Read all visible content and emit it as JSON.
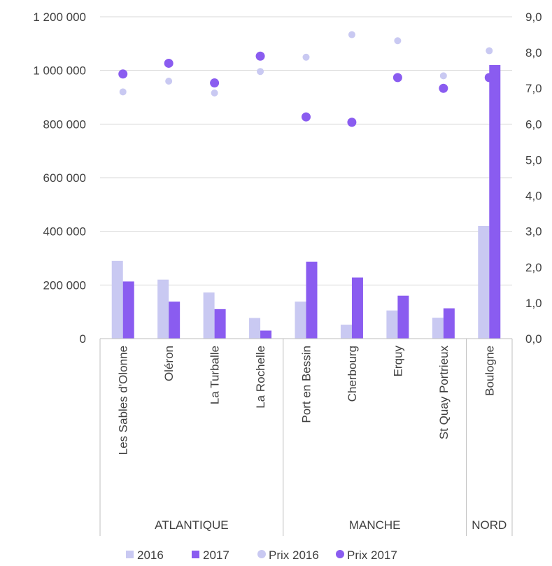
{
  "chart_data": {
    "type": "bar",
    "categories": [
      "Les Sables d'Olonne",
      "Oléron",
      "La Turballe",
      "La Rochelle",
      "Port en Bessin",
      "Cherbourg",
      "Erquy",
      "St Quay Portrieux",
      "Boulogne"
    ],
    "groups": [
      {
        "label": "ATLANTIQUE",
        "count": 4
      },
      {
        "label": "MANCHE",
        "count": 4
      },
      {
        "label": "NORD",
        "count": 1
      }
    ],
    "series": [
      {
        "name": "2016",
        "kind": "bar",
        "axis": "left",
        "color": "#c9c9f2",
        "values": [
          290000,
          220000,
          172000,
          77000,
          138000,
          52000,
          105000,
          78000,
          420000
        ]
      },
      {
        "name": "2017",
        "kind": "bar",
        "axis": "left",
        "color": "#8a5cf0",
        "values": [
          213000,
          138000,
          110000,
          30000,
          287000,
          228000,
          160000,
          113000,
          1020000
        ]
      },
      {
        "name": "Prix 2016",
        "kind": "scatter",
        "axis": "right",
        "color": "#c9c9f2",
        "values": [
          6.9,
          7.2,
          6.87,
          7.47,
          7.87,
          8.5,
          8.33,
          7.35,
          8.05
        ]
      },
      {
        "name": "Prix 2017",
        "kind": "scatter",
        "axis": "right",
        "color": "#8a5cf0",
        "values": [
          7.4,
          7.7,
          7.15,
          7.9,
          6.2,
          6.05,
          7.3,
          7.0,
          7.3
        ]
      }
    ],
    "y_left": {
      "min": 0,
      "max": 1200000,
      "ticks": [
        "0",
        "200 000",
        "400 000",
        "600 000",
        "800 000",
        "1 000 000",
        "1 200 000"
      ]
    },
    "y_right": {
      "min": 0,
      "max": 9,
      "ticks": [
        "0,0",
        "1,0",
        "2,0",
        "3,0",
        "4,0",
        "5,0",
        "6,0",
        "7,0",
        "8,0",
        "9,0"
      ]
    },
    "grid": true,
    "legend": "bottom"
  }
}
